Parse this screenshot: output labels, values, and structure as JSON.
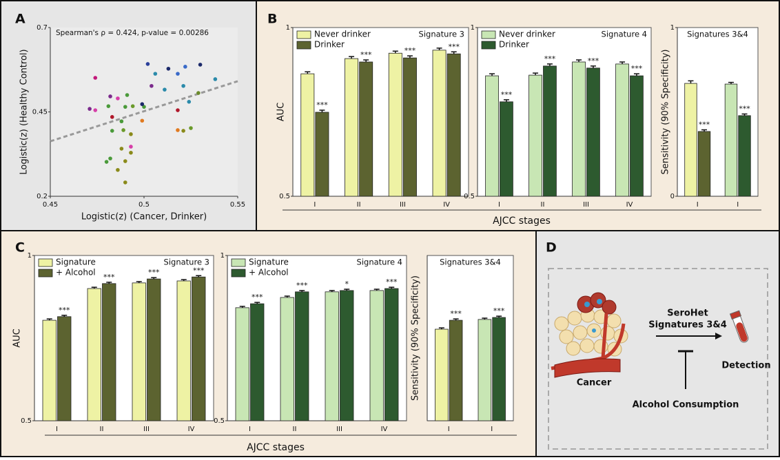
{
  "panel_labels": [
    "A",
    "B",
    "C",
    "D"
  ],
  "shared_x_labels": [
    "AJCC stages",
    "AJCC stages"
  ],
  "chart_data": [
    {
      "type": "scatter",
      "annotation": "Spearman's ρ = 0.424, p-value = 0.00286",
      "x_label": "Logistic(z) (Cancer, Drinker)",
      "y_label": "Logistic(z) (Healthy Control)",
      "x": [
        0.474,
        0.471,
        0.474,
        0.482,
        0.486,
        0.491,
        0.481,
        0.49,
        0.494,
        0.483,
        0.488,
        0.483,
        0.489,
        0.493,
        0.499,
        0.5,
        0.502,
        0.504,
        0.499,
        0.506,
        0.513,
        0.518,
        0.522,
        0.53,
        0.521,
        0.518,
        0.524,
        0.538,
        0.529,
        0.511,
        0.518,
        0.521,
        0.525,
        0.488,
        0.493,
        0.482,
        0.48,
        0.49,
        0.486,
        0.49,
        0.493
      ],
      "values": [
        0.551,
        0.459,
        0.455,
        0.496,
        0.49,
        0.5,
        0.467,
        0.465,
        0.467,
        0.435,
        0.422,
        0.394,
        0.396,
        0.384,
        0.424,
        0.465,
        0.592,
        0.527,
        0.473,
        0.563,
        0.578,
        0.563,
        0.584,
        0.59,
        0.527,
        0.455,
        0.48,
        0.547,
        0.506,
        0.516,
        0.396,
        0.394,
        0.402,
        0.341,
        0.329,
        0.312,
        0.302,
        0.304,
        0.278,
        0.241,
        0.347
      ],
      "colors": [
        "#c2187a",
        "#7b2a8c",
        "#d63fa8",
        "#7b2a8c",
        "#d63fa8",
        "#4a9a3a",
        "#4a9a3a",
        "#4a9a3a",
        "#6a9a2a",
        "#b0172a",
        "#4a9a3a",
        "#4a9a3a",
        "#6a9a2a",
        "#8a8a1a",
        "#e07a20",
        "#4a9a3a",
        "#2a3f9a",
        "#7b2a8c",
        "#1c2a6a",
        "#2a8aaa",
        "#1c2a6a",
        "#3a6ac8",
        "#3a6ac8",
        "#1c2a6a",
        "#2a8aaa",
        "#b0172a",
        "#2a8aaa",
        "#2a8aaa",
        "#6a8a2a",
        "#2a8aaa",
        "#e07a20",
        "#8a8a1a",
        "#6a9a2a",
        "#8a8a1a",
        "#8a8a1a",
        "#4a9a3a",
        "#4a9a3a",
        "#8a8a1a",
        "#8a8a1a",
        "#8a8a1a",
        "#d63fa8"
      ],
      "trend_line": {
        "x": [
          0.45,
          0.55
        ],
        "values": [
          0.363,
          0.541
        ],
        "color": "#999999"
      },
      "xlim": [
        0.45,
        0.55
      ],
      "xticks": [
        0.45,
        0.5,
        0.55
      ],
      "ylim": [
        0.2,
        0.7
      ],
      "yticks": [
        0.2,
        0.45,
        0.7
      ]
    },
    {
      "type": "bar",
      "title": "Signature 3",
      "y_label": "AUC",
      "categories": [
        "I",
        "II",
        "III",
        "IV"
      ],
      "series": [
        {
          "name": "Never drinker",
          "color": "#eef2a4",
          "values": [
            0.863,
            0.908,
            0.924,
            0.933
          ],
          "errors": [
            0.006,
            0.006,
            0.006,
            0.006
          ]
        },
        {
          "name": "Drinker",
          "color": "#5c6330",
          "values": [
            0.749,
            0.898,
            0.91,
            0.922
          ],
          "errors": [
            0.006,
            0.006,
            0.006,
            0.006
          ],
          "significance": [
            "***",
            "***",
            "***",
            "***"
          ]
        }
      ],
      "ylim": [
        0.5,
        1
      ],
      "yticks": [
        0.5,
        1
      ]
    },
    {
      "type": "bar",
      "title": "Signature 4",
      "categories": [
        "I",
        "II",
        "III",
        "IV"
      ],
      "series": [
        {
          "name": "Never drinker",
          "color": "#c8e6b4",
          "values": [
            0.857,
            0.859,
            0.898,
            0.892
          ],
          "errors": [
            0.006,
            0.006,
            0.006,
            0.006
          ]
        },
        {
          "name": "Drinker",
          "color": "#2d5a2f",
          "values": [
            0.78,
            0.886,
            0.88,
            0.857
          ],
          "errors": [
            0.006,
            0.006,
            0.006,
            0.006
          ],
          "significance": [
            "***",
            "***",
            "***",
            "***"
          ]
        }
      ],
      "ylim": [
        0.5,
        1
      ],
      "yticks": [
        0.5,
        1
      ]
    },
    {
      "type": "bar",
      "title": "Signatures 3&4",
      "y_label": "Sensitivity (90% Specificity)",
      "categories": [
        "I",
        "I"
      ],
      "series": [
        {
          "colors": [
            "#eef2a4",
            "#c8e6b4"
          ],
          "values": [
            0.669,
            0.665
          ],
          "errors": [
            0.015,
            0.01
          ]
        },
        {
          "colors": [
            "#5c6330",
            "#2d5a2f"
          ],
          "values": [
            0.384,
            0.478
          ],
          "errors": [
            0.01,
            0.01
          ],
          "significance": [
            "***",
            "***"
          ]
        }
      ],
      "ylim": [
        0,
        1
      ],
      "yticks": [
        0,
        1
      ]
    },
    {
      "type": "bar",
      "title": "Signature 3",
      "y_label": "AUC",
      "categories": [
        "I",
        "II",
        "III",
        "IV"
      ],
      "series": [
        {
          "name": "Signature",
          "color": "#eef2a4",
          "values": [
            0.804,
            0.9,
            0.917,
            0.923
          ],
          "errors": [
            0.004,
            0.004,
            0.004,
            0.004
          ]
        },
        {
          "name": "+ Alcohol",
          "color": "#5c6330",
          "values": [
            0.815,
            0.915,
            0.929,
            0.935
          ],
          "errors": [
            0.004,
            0.004,
            0.004,
            0.004
          ],
          "significance": [
            "***",
            "***",
            "***",
            "***"
          ]
        }
      ],
      "ylim": [
        0.5,
        1
      ],
      "yticks": [
        0.5,
        1
      ]
    },
    {
      "type": "bar",
      "title": "Signature 4",
      "categories": [
        "I",
        "II",
        "III",
        "IV"
      ],
      "series": [
        {
          "name": "Signature",
          "color": "#c8e6b4",
          "values": [
            0.842,
            0.873,
            0.89,
            0.894
          ],
          "errors": [
            0.004,
            0.004,
            0.004,
            0.004
          ]
        },
        {
          "name": "+ Alcohol",
          "color": "#2d5a2f",
          "values": [
            0.854,
            0.89,
            0.894,
            0.9
          ],
          "errors": [
            0.004,
            0.004,
            0.004,
            0.004
          ],
          "significance": [
            "***",
            "***",
            "*",
            "***"
          ]
        }
      ],
      "ylim": [
        0.5,
        1
      ],
      "yticks": [
        0.5,
        1
      ]
    },
    {
      "type": "bar",
      "title": "Signatures 3&4",
      "y_label": "Sensitivity (90% Specificity)",
      "categories": [
        "I",
        "I"
      ],
      "series": [
        {
          "colors": [
            "#eef2a4",
            "#c8e6b4"
          ],
          "values": [
            0.554,
            0.613
          ],
          "errors": [
            0.008,
            0.008
          ]
        },
        {
          "colors": [
            "#5c6330",
            "#2d5a2f"
          ],
          "values": [
            0.608,
            0.625
          ],
          "errors": [
            0.008,
            0.008
          ],
          "significance": [
            "***",
            "***"
          ]
        }
      ],
      "ylim": [
        0,
        1
      ]
    }
  ],
  "diagram": {
    "arrow_label": [
      "SeroHet",
      "Signatures 3&4"
    ],
    "source": "Cancer",
    "target": "Detection",
    "inhibitor": "Alcohol Consumption"
  }
}
